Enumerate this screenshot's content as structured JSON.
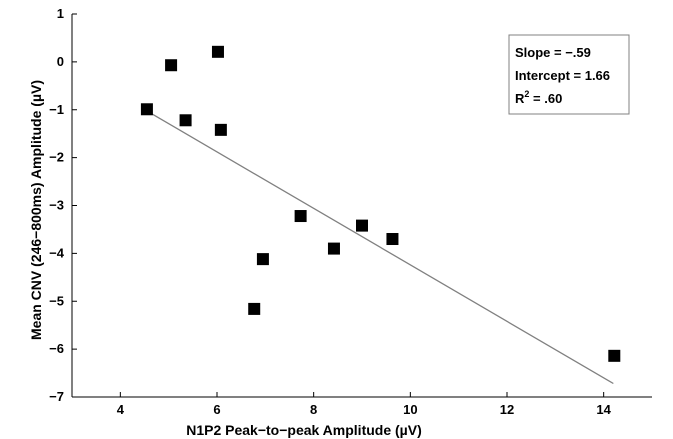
{
  "chart_data": {
    "type": "scatter",
    "xlabel": "N1P2 Peak−to−peak Amplitude (µV)",
    "ylabel": "Mean CNV (246−800ms) Amplitude (µV)",
    "xlim": [
      3,
      15
    ],
    "ylim": [
      -7,
      1
    ],
    "xticks": [
      4,
      6,
      8,
      10,
      12,
      14
    ],
    "yticks": [
      1,
      0,
      -1,
      -2,
      -3,
      -4,
      -5,
      -6,
      -7
    ],
    "xtick_labels": [
      "4",
      "6",
      "8",
      "10",
      "12",
      "14"
    ],
    "ytick_labels": [
      "1",
      "0",
      "−1",
      "−2",
      "−3",
      "−4",
      "−5",
      "−6",
      "−7"
    ],
    "points": [
      {
        "x": 4.55,
        "y": -0.99
      },
      {
        "x": 5.05,
        "y": -0.07
      },
      {
        "x": 5.35,
        "y": -1.22
      },
      {
        "x": 6.02,
        "y": 0.21
      },
      {
        "x": 6.08,
        "y": -1.42
      },
      {
        "x": 6.77,
        "y": -5.16
      },
      {
        "x": 6.95,
        "y": -4.12
      },
      {
        "x": 7.73,
        "y": -3.22
      },
      {
        "x": 8.42,
        "y": -3.9
      },
      {
        "x": 9.0,
        "y": -3.42
      },
      {
        "x": 9.63,
        "y": -3.7
      },
      {
        "x": 14.22,
        "y": -6.14
      }
    ],
    "regression": {
      "x_start": 4.5,
      "x_end": 14.2,
      "slope": -0.59,
      "intercept": 1.66
    },
    "grid": false,
    "marker": "filled-square",
    "marker_color": "#000000",
    "line_color": "#808080",
    "annotation": {
      "slope_text": "Slope = −.59",
      "intercept_text": "Intercept = 1.66",
      "r2_prefix": "R",
      "r2_superscript": "2",
      "r2_value": " = .60",
      "placement": "top-right"
    }
  }
}
